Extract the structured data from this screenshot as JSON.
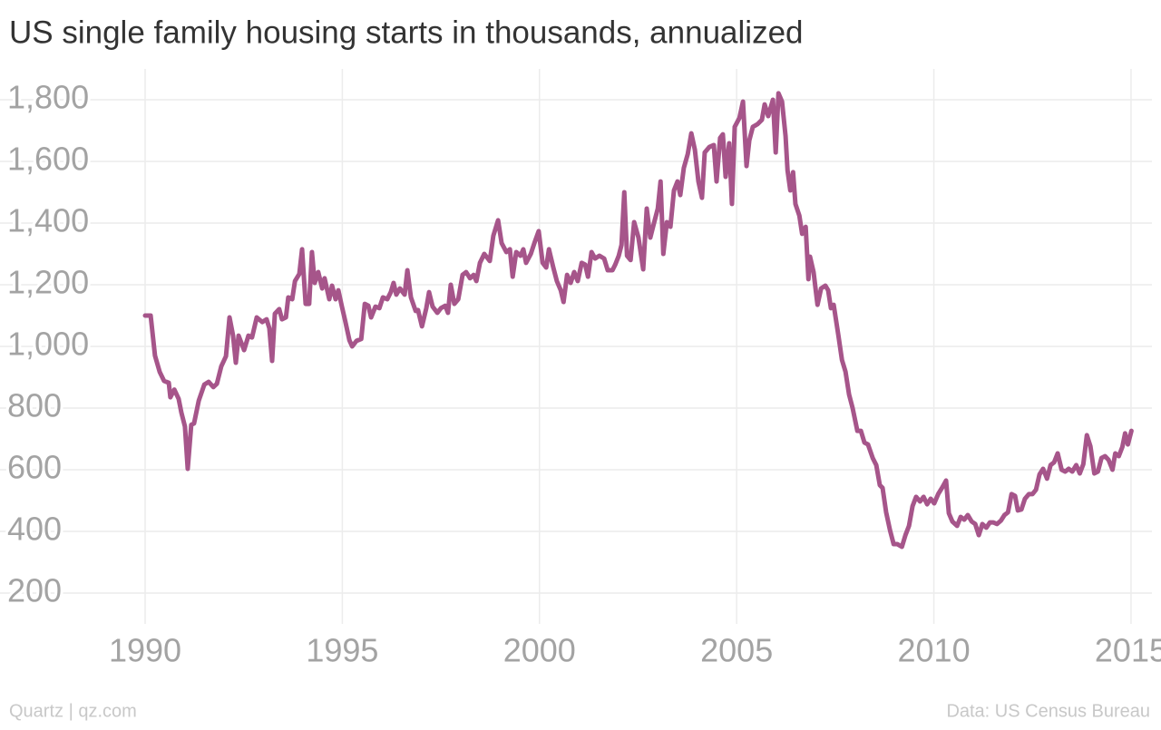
{
  "chart_data": {
    "type": "line",
    "title": "US single family housing starts in thousands, annualized",
    "source": "Data: US Census Bureau",
    "credit": "Quartz | qz.com",
    "xlim": [
      1986.32,
      2015.53
    ],
    "ylim": [
      100,
      1900
    ],
    "xticks": [
      1990,
      1995,
      2000,
      2005,
      2010,
      2015
    ],
    "yticks": [
      200,
      400,
      600,
      800,
      {
        "value": 1000,
        "label": "1,000"
      },
      {
        "value": 1200,
        "label": "1,200"
      },
      {
        "value": 1400,
        "label": "1,400"
      },
      {
        "value": 1600,
        "label": "1,600"
      },
      {
        "value": 1800,
        "label": "1,800"
      }
    ],
    "grid": true,
    "x": [
      1990.0,
      1990.14,
      1990.25,
      1990.37,
      1990.48,
      1990.6,
      1990.64,
      1990.74,
      1990.85,
      1990.92,
      1991.01,
      1991.08,
      1991.17,
      1991.24,
      1991.36,
      1991.5,
      1991.61,
      1991.73,
      1991.82,
      1991.93,
      1992.05,
      1992.14,
      1992.23,
      1992.3,
      1992.37,
      1992.51,
      1992.62,
      1992.71,
      1992.83,
      1992.97,
      1993.08,
      1993.15,
      1993.22,
      1993.29,
      1993.4,
      1993.47,
      1993.57,
      1993.63,
      1993.73,
      1993.8,
      1993.91,
      1993.98,
      1994.07,
      1994.16,
      1994.23,
      1994.3,
      1994.39,
      1994.49,
      1994.55,
      1994.67,
      1994.74,
      1994.83,
      1994.9,
      1994.99,
      1995.08,
      1995.18,
      1995.25,
      1995.36,
      1995.48,
      1995.57,
      1995.66,
      1995.73,
      1995.84,
      1995.94,
      1996.03,
      1996.14,
      1996.23,
      1996.3,
      1996.37,
      1996.46,
      1996.58,
      1996.65,
      1996.74,
      1996.86,
      1996.92,
      1997.02,
      1997.13,
      1997.2,
      1997.29,
      1997.41,
      1997.5,
      1997.61,
      1997.68,
      1997.75,
      1997.84,
      1997.94,
      1998.05,
      1998.14,
      1998.24,
      1998.33,
      1998.4,
      1998.49,
      1998.6,
      1998.74,
      1998.83,
      1998.95,
      1999.04,
      1999.16,
      1999.25,
      1999.32,
      1999.41,
      1999.52,
      1999.59,
      1999.66,
      1999.78,
      1999.87,
      1999.98,
      2000.08,
      2000.17,
      2000.24,
      2000.35,
      2000.44,
      2000.54,
      2000.61,
      2000.7,
      2000.79,
      2000.88,
      2000.97,
      2001.07,
      2001.16,
      2001.23,
      2001.32,
      2001.41,
      2001.52,
      2001.64,
      2001.73,
      2001.85,
      2001.92,
      2002.01,
      2002.08,
      2002.15,
      2002.22,
      2002.31,
      2002.4,
      2002.51,
      2002.63,
      2002.72,
      2002.81,
      2002.91,
      2003.0,
      2003.07,
      2003.14,
      2003.23,
      2003.32,
      2003.41,
      2003.5,
      2003.57,
      2003.66,
      2003.76,
      2003.85,
      2003.94,
      2004.03,
      2004.12,
      2004.19,
      2004.31,
      2004.42,
      2004.49,
      2004.58,
      2004.65,
      2004.72,
      2004.81,
      2004.88,
      2004.95,
      2005.07,
      2005.16,
      2005.25,
      2005.32,
      2005.41,
      2005.53,
      2005.64,
      2005.71,
      2005.8,
      2005.92,
      2005.99,
      2006.06,
      2006.15,
      2006.24,
      2006.29,
      2006.36,
      2006.43,
      2006.49,
      2006.59,
      2006.66,
      2006.75,
      2006.82,
      2006.86,
      2006.95,
      2007.05,
      2007.14,
      2007.25,
      2007.32,
      2007.39,
      2007.46,
      2007.58,
      2007.67,
      2007.76,
      2007.85,
      2007.94,
      2008.06,
      2008.15,
      2008.24,
      2008.33,
      2008.45,
      2008.54,
      2008.63,
      2008.7,
      2008.79,
      2008.89,
      2008.98,
      2009.07,
      2009.19,
      2009.28,
      2009.37,
      2009.46,
      2009.55,
      2009.65,
      2009.74,
      2009.83,
      2009.92,
      2010.01,
      2010.11,
      2010.22,
      2010.31,
      2010.38,
      2010.47,
      2010.59,
      2010.68,
      2010.77,
      2010.86,
      2010.96,
      2011.05,
      2011.14,
      2011.23,
      2011.33,
      2011.42,
      2011.51,
      2011.6,
      2011.7,
      2011.79,
      2011.88,
      2011.97,
      2012.06,
      2012.13,
      2012.22,
      2012.31,
      2012.41,
      2012.5,
      2012.59,
      2012.68,
      2012.77,
      2012.87,
      2012.96,
      2013.05,
      2013.14,
      2013.24,
      2013.33,
      2013.42,
      2013.51,
      2013.61,
      2013.7,
      2013.79,
      2013.88,
      2013.97,
      2014.07,
      2014.16,
      2014.25,
      2014.34,
      2014.43,
      2014.53,
      2014.6,
      2014.69,
      2014.78,
      2014.85,
      2014.92,
      2015.01
    ],
    "series": [
      {
        "name": "Housing starts",
        "color": "#a6558a",
        "values": [
          1100,
          1100,
          970,
          917,
          888,
          882,
          835,
          860,
          830,
          785,
          740,
          603,
          746,
          750,
          824,
          876,
          885,
          868,
          879,
          935,
          968,
          1094,
          1035,
          947,
          1035,
          988,
          1035,
          1029,
          1094,
          1079,
          1088,
          1059,
          953,
          1106,
          1121,
          1088,
          1094,
          1159,
          1153,
          1212,
          1235,
          1315,
          1138,
          1138,
          1306,
          1206,
          1241,
          1188,
          1221,
          1153,
          1197,
          1153,
          1182,
          1129,
          1079,
          1020,
          1000,
          1018,
          1024,
          1138,
          1132,
          1094,
          1129,
          1124,
          1159,
          1153,
          1176,
          1206,
          1168,
          1188,
          1168,
          1247,
          1159,
          1115,
          1118,
          1065,
          1124,
          1176,
          1129,
          1109,
          1124,
          1132,
          1109,
          1200,
          1138,
          1153,
          1232,
          1241,
          1221,
          1232,
          1212,
          1271,
          1300,
          1277,
          1359,
          1409,
          1335,
          1306,
          1315,
          1226,
          1306,
          1294,
          1315,
          1271,
          1300,
          1335,
          1374,
          1271,
          1256,
          1315,
          1256,
          1212,
          1182,
          1144,
          1232,
          1206,
          1241,
          1212,
          1271,
          1265,
          1226,
          1306,
          1285,
          1294,
          1285,
          1247,
          1247,
          1265,
          1294,
          1329,
          1500,
          1294,
          1280,
          1403,
          1353,
          1250,
          1447,
          1353,
          1403,
          1447,
          1535,
          1300,
          1403,
          1388,
          1506,
          1535,
          1491,
          1579,
          1624,
          1691,
          1638,
          1535,
          1482,
          1629,
          1647,
          1653,
          1535,
          1676,
          1688,
          1550,
          1659,
          1462,
          1712,
          1741,
          1794,
          1585,
          1668,
          1712,
          1721,
          1735,
          1785,
          1747,
          1800,
          1629,
          1821,
          1794,
          1682,
          1571,
          1506,
          1565,
          1462,
          1424,
          1365,
          1388,
          1218,
          1291,
          1241,
          1135,
          1188,
          1197,
          1182,
          1124,
          1135,
          1035,
          956,
          918,
          844,
          800,
          726,
          726,
          688,
          682,
          638,
          615,
          550,
          541,
          462,
          403,
          359,
          359,
          350,
          388,
          418,
          482,
          512,
          497,
          512,
          488,
          506,
          491,
          521,
          544,
          565,
          459,
          432,
          418,
          447,
          438,
          453,
          432,
          424,
          388,
          424,
          412,
          429,
          429,
          424,
          435,
          453,
          462,
          521,
          515,
          468,
          471,
          506,
          521,
          521,
          535,
          585,
          603,
          571,
          615,
          624,
          653,
          600,
          594,
          603,
          594,
          615,
          588,
          618,
          712,
          676,
          588,
          594,
          638,
          644,
          632,
          600,
          653,
          644,
          674,
          718,
          682,
          726
        ]
      }
    ]
  }
}
